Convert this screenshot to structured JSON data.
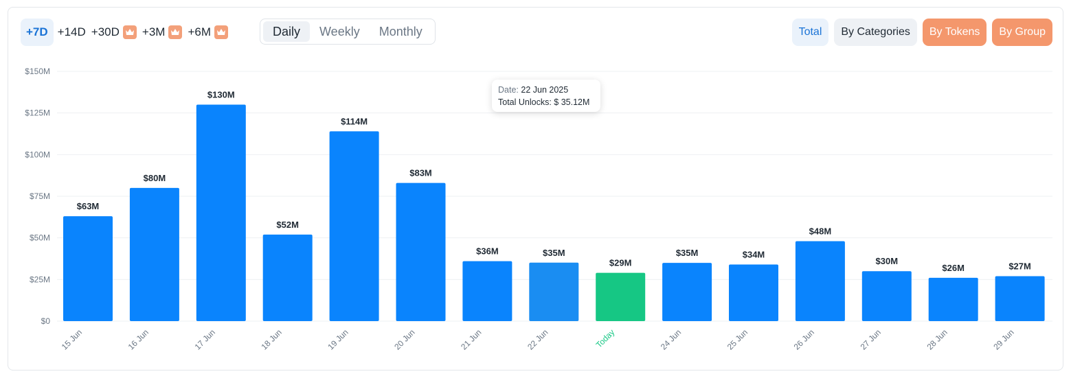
{
  "ranges": [
    {
      "label": "+7D",
      "active": true,
      "premium": false
    },
    {
      "label": "+14D",
      "active": false,
      "premium": false
    },
    {
      "label": "+30D",
      "active": false,
      "premium": true
    },
    {
      "label": "+3M",
      "active": false,
      "premium": true
    },
    {
      "label": "+6M",
      "active": false,
      "premium": true
    }
  ],
  "periods": [
    {
      "label": "Daily",
      "active": true
    },
    {
      "label": "Weekly",
      "active": false
    },
    {
      "label": "Monthly",
      "active": false
    }
  ],
  "views": [
    {
      "label": "Total",
      "style": "total"
    },
    {
      "label": "By Categories",
      "style": "cats"
    },
    {
      "label": "By Tokens",
      "style": "warm"
    },
    {
      "label": "By Group",
      "style": "warm"
    }
  ],
  "tooltip": {
    "date_key": "Date:",
    "date_value": "22 Jun 2025",
    "unlocks_key": "Total Unlocks:",
    "unlocks_value": "$ 35.12M"
  },
  "colors": {
    "bar": "#0a84fd",
    "bar_hover": "#1a8df2",
    "bar_today": "#16c784",
    "today_label": "#16c784",
    "axis_text": "#6b7785",
    "value_label": "#1f2933",
    "grid": "#eef0f3"
  },
  "chart_data": {
    "type": "bar",
    "categories": [
      "15 Jun",
      "16 Jun",
      "17 Jun",
      "18 Jun",
      "19 Jun",
      "20 Jun",
      "21 Jun",
      "22 Jun",
      "Today",
      "24 Jun",
      "25 Jun",
      "26 Jun",
      "27 Jun",
      "28 Jun",
      "29 Jun"
    ],
    "values": [
      63,
      80,
      130,
      52,
      114,
      83,
      36,
      35.12,
      29,
      35,
      34,
      48,
      30,
      26,
      27
    ],
    "value_labels": [
      "$63M",
      "$80M",
      "$130M",
      "$52M",
      "$114M",
      "$83M",
      "$36M",
      "$35M",
      "$29M",
      "$35M",
      "$34M",
      "$48M",
      "$30M",
      "$26M",
      "$27M"
    ],
    "highlight_index": 8,
    "hover_index": 7,
    "ylim": [
      0,
      150
    ],
    "yticks": [
      0,
      25,
      50,
      75,
      100,
      125,
      150
    ],
    "ytick_labels": [
      "$0",
      "$25M",
      "$50M",
      "$75M",
      "$100M",
      "$125M",
      "$150M"
    ],
    "grid": true,
    "legend": "none"
  }
}
